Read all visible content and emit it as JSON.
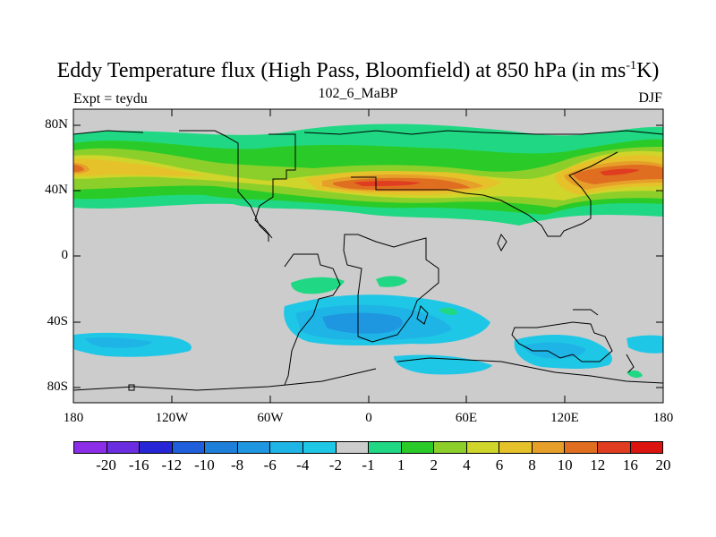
{
  "title_main": "Eddy Temperature flux (High Pass, Bloomfield) at 850 hPa (in ms",
  "title_sup": "-1",
  "title_end": "K)",
  "left_label": "Expt = teydu",
  "center_label": "102_6_MaBP",
  "right_label": "DJF",
  "y_ticks": [
    "80N",
    "40N",
    "0",
    "40S",
    "80S"
  ],
  "x_ticks": [
    "180",
    "120W",
    "60W",
    "0",
    "60E",
    "120E",
    "180"
  ],
  "colorbar": {
    "labels": [
      "-20",
      "-16",
      "-12",
      "-10",
      "-8",
      "-6",
      "-4",
      "-2",
      "-1",
      "1",
      "2",
      "4",
      "6",
      "8",
      "10",
      "12",
      "16",
      "20"
    ],
    "colors": [
      "#8c2ee8",
      "#6a2ee0",
      "#2626d6",
      "#1f5fdc",
      "#1e7fdb",
      "#1e97e0",
      "#1fb4e6",
      "#1fc7e6",
      "#cccccc",
      "#20d884",
      "#2acb28",
      "#8ccf2a",
      "#cfd52a",
      "#e6c22a",
      "#e6a02a",
      "#e06e20",
      "#e03c20",
      "#dc1410"
    ]
  }
}
